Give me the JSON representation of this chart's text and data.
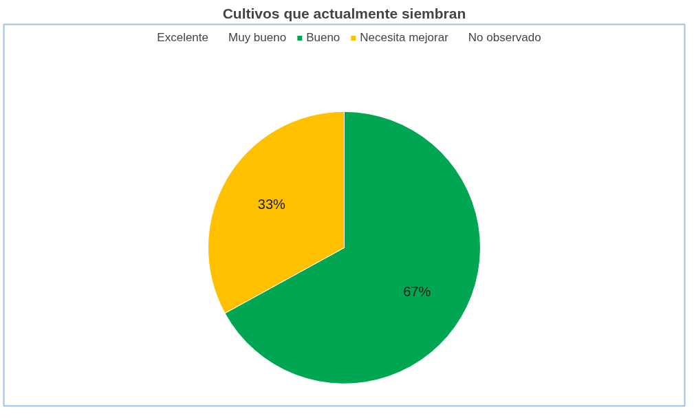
{
  "chart_data": {
    "type": "pie",
    "title": "Cultivos que actualmente siembran",
    "categories": [
      "Excelente",
      "Muy bueno",
      "Bueno",
      "Necesita mejorar",
      "No observado"
    ],
    "values": [
      0,
      0,
      67,
      33,
      0
    ],
    "colors": [
      "#5b9bd5",
      "#ed7d31",
      "#00a651",
      "#ffc000",
      "#4472c4"
    ],
    "value_labels": [
      null,
      null,
      "67%",
      "33%",
      null
    ],
    "legend": "top"
  }
}
